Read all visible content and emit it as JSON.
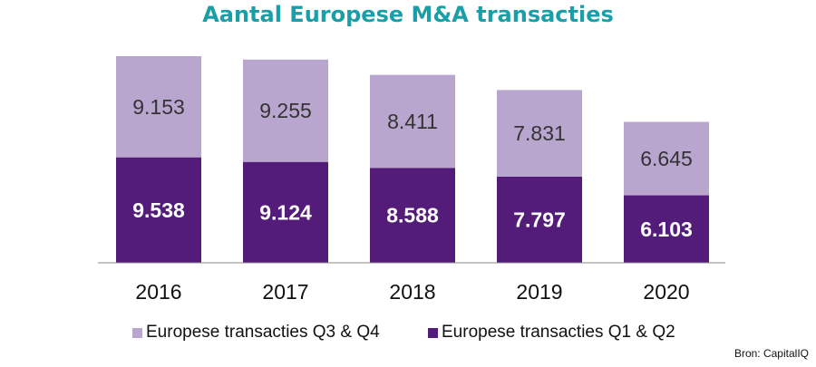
{
  "chart_data": {
    "type": "bar",
    "stacked": true,
    "title": "Aantal Europese M&A transacties",
    "categories": [
      "2016",
      "2017",
      "2018",
      "2019",
      "2020"
    ],
    "series": [
      {
        "name": "Europese transacties Q1 & Q2",
        "values": [
          9538,
          9124,
          8588,
          7797,
          6103
        ],
        "color": "#531c78",
        "label_color": "#ffffff"
      },
      {
        "name": "Europese transacties Q3 & Q4",
        "values": [
          9153,
          9255,
          8411,
          7831,
          6645
        ],
        "color": "#b9a6cf",
        "label_color": "#333333"
      }
    ],
    "legend_order": [
      1,
      0
    ],
    "legend_placement": "bottom",
    "ylim": [
      0,
      20000
    ],
    "grid": false,
    "number_format": "thousands separator '.'"
  },
  "source": "Bron: CapitalIQ"
}
